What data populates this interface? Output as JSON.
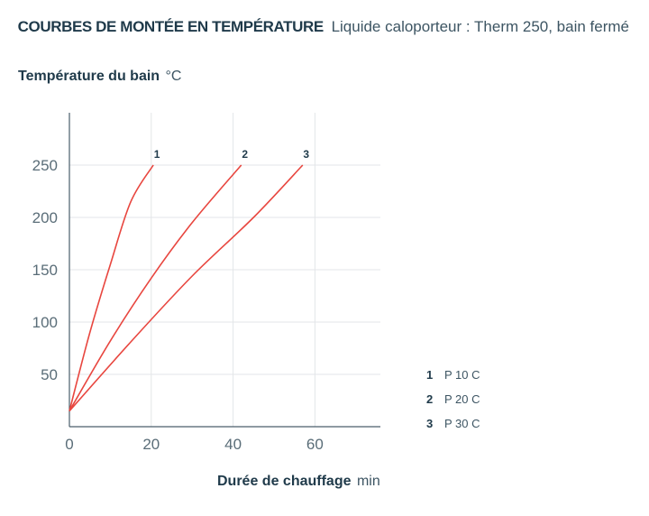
{
  "header": {
    "title": "COURBES DE MONTÉE EN TEMPÉRATURE",
    "subtitle": "Liquide caloporteur : Therm 250, bain fermé"
  },
  "axes": {
    "y_label": "Température du bain",
    "y_unit": "°C",
    "x_label": "Durée de chauffage",
    "x_unit": "min"
  },
  "legend": [
    {
      "number": "1",
      "name": "P 10 C"
    },
    {
      "number": "2",
      "name": "P 20 C"
    },
    {
      "number": "3",
      "name": "P 30 C"
    }
  ],
  "colors": {
    "series": "#e8463f",
    "text": "#1f3a4a",
    "grid": "#e3e6e8"
  },
  "chart_data": {
    "type": "line",
    "title": "COURBES DE MONTÉE EN TEMPÉRATURE",
    "subtitle": "Liquide caloporteur : Therm 250, bain fermé",
    "xlabel": "Durée de chauffage min",
    "ylabel": "Température du bain °C",
    "xlim": [
      0,
      76
    ],
    "ylim": [
      0,
      300
    ],
    "x_ticks": [
      0,
      20,
      40,
      60
    ],
    "y_ticks": [
      50,
      100,
      150,
      200,
      250
    ],
    "grid": true,
    "legend_position": "bottom-right",
    "series": [
      {
        "name": "P 10 C",
        "label": "1",
        "x": [
          0,
          5,
          10,
          15,
          20.5
        ],
        "y": [
          15,
          90,
          155,
          215,
          250
        ]
      },
      {
        "name": "P 20 C",
        "label": "2",
        "x": [
          0,
          10,
          20,
          30,
          42
        ],
        "y": [
          15,
          82,
          142,
          195,
          250
        ]
      },
      {
        "name": "P 30 C",
        "label": "3",
        "x": [
          0,
          15,
          30,
          45,
          57
        ],
        "y": [
          15,
          81,
          144,
          200,
          250
        ]
      }
    ]
  }
}
